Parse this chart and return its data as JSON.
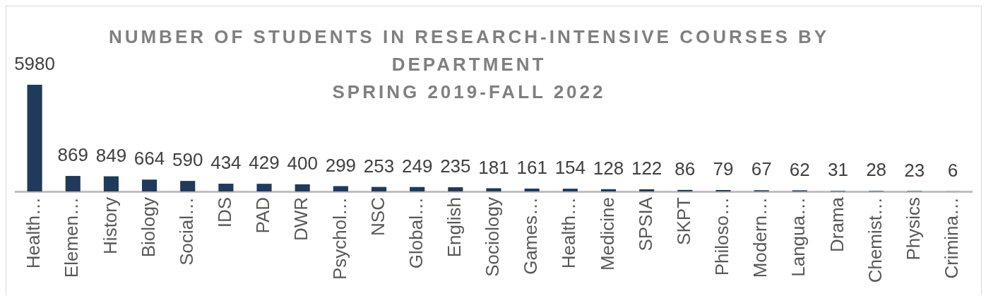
{
  "chart_data": {
    "type": "bar",
    "title": "NUMBER OF STUDENTS IN RESEARCH-INTENSIVE COURSES BY DEPARTMENT",
    "subtitle": "SPRING 2019-FALL 2022",
    "categories": [
      "Health…",
      "Elemen…",
      "History",
      "Biology",
      "Social…",
      "IDS",
      "PAD",
      "DWR",
      "Psychol…",
      "NSC",
      "Global…",
      "English",
      "Sociology",
      "Games…",
      "Health…",
      "Medicine",
      "SPSIA",
      "SKPT",
      "Philoso…",
      "Modern…",
      "Langua…",
      "Drama",
      "Chemist…",
      "Physics",
      "Crimina…"
    ],
    "values": [
      5980,
      869,
      849,
      664,
      590,
      434,
      429,
      400,
      299,
      253,
      249,
      235,
      181,
      161,
      154,
      128,
      122,
      86,
      79,
      67,
      62,
      31,
      28,
      23,
      6
    ],
    "color": "#1f3a5a",
    "data_labels": true
  }
}
